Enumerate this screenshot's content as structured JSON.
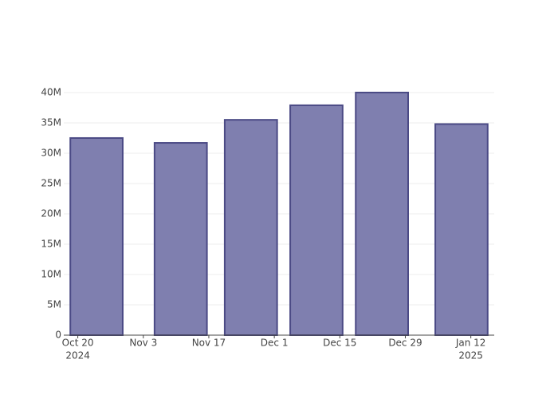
{
  "chart_data": {
    "type": "bar",
    "x": [
      "2024-10-24",
      "2024-11-11",
      "2024-11-26",
      "2024-12-10",
      "2024-12-24",
      "2025-01-10"
    ],
    "values": [
      32500000,
      31700000,
      35500000,
      37900000,
      40000000,
      34800000
    ],
    "color": "#7f7faf",
    "line_color": "#4b4a85",
    "bar_width_days": 11.2,
    "xlim": [
      "2024-10-17",
      "2025-01-17"
    ],
    "xticks": [
      {
        "value": "2024-10-20",
        "label": "Oct 20",
        "year": "2024"
      },
      {
        "value": "2024-11-03",
        "label": "Nov 3"
      },
      {
        "value": "2024-11-17",
        "label": "Nov 17"
      },
      {
        "value": "2024-12-01",
        "label": "Dec 1"
      },
      {
        "value": "2024-12-15",
        "label": "Dec 15"
      },
      {
        "value": "2024-12-29",
        "label": "Dec 29"
      },
      {
        "value": "2025-01-12",
        "label": "Jan 12",
        "year": "2025"
      }
    ],
    "ylim": [
      0,
      42100000
    ],
    "yticks": [
      0,
      {
        "value": 5000000,
        "label": "5M"
      },
      {
        "value": 10000000,
        "label": "10M"
      },
      {
        "value": 15000000,
        "label": "15M"
      },
      {
        "value": 20000000,
        "label": "20M"
      },
      {
        "value": 25000000,
        "label": "25M"
      },
      {
        "value": 30000000,
        "label": "30M"
      },
      {
        "value": 35000000,
        "label": "35M"
      },
      {
        "value": 40000000,
        "label": "40M"
      }
    ],
    "grid": true
  }
}
